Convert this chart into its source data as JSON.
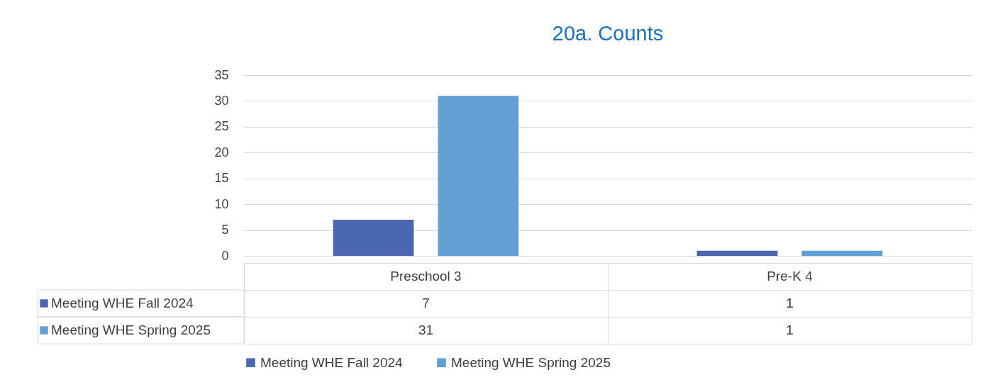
{
  "chart_data": {
    "type": "bar",
    "title": "20a. Counts",
    "categories": [
      "Preschool 3",
      "Pre-K 4"
    ],
    "series": [
      {
        "name": "Meeting WHE Fall 2024",
        "color": "#4a67b0",
        "values": [
          7,
          1
        ]
      },
      {
        "name": "Meeting WHE Spring 2025",
        "color": "#629fd3",
        "values": [
          31,
          1
        ]
      }
    ],
    "ylim": [
      0,
      35
    ],
    "yticks": [
      0,
      5,
      10,
      15,
      20,
      25,
      30,
      35
    ],
    "grid": "y",
    "legend": "bottom",
    "data_labels": true
  }
}
